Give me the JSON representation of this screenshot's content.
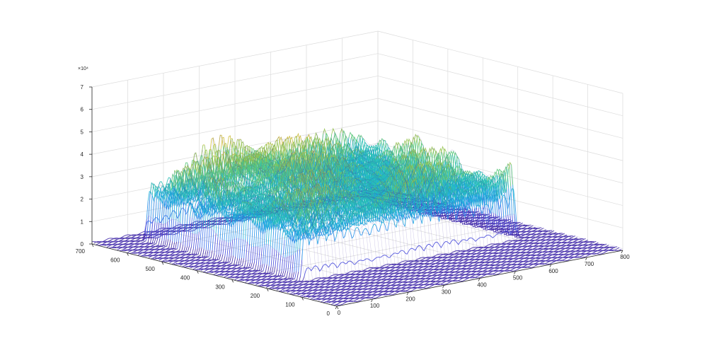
{
  "chart_data": {
    "type": "surface",
    "title": "",
    "xlabel": "",
    "ylabel": "",
    "zlabel": "",
    "x_axis": {
      "ticks": [
        0,
        100,
        200,
        300,
        400,
        500,
        600,
        700,
        800
      ],
      "range": [
        0,
        800
      ]
    },
    "y_axis": {
      "ticks": [
        0,
        100,
        200,
        300,
        400,
        500,
        600,
        700
      ],
      "range": [
        0,
        700
      ]
    },
    "z_axis": {
      "ticks": [
        0,
        1,
        2,
        3,
        4,
        5,
        6,
        7
      ],
      "range": [
        0,
        7
      ],
      "exponent_label": "×10⁴",
      "multiplier": 10000
    },
    "grid": true,
    "colormap": "parula",
    "surface_summary": {
      "noise_floor": 0.1,
      "plateau_region": {
        "x": [
          100,
          700
        ],
        "y": [
          200,
          650
        ]
      },
      "plateau_level": 3.6,
      "peak_value": 5.6,
      "peak_location": {
        "x": 330,
        "y": 580
      }
    }
  }
}
